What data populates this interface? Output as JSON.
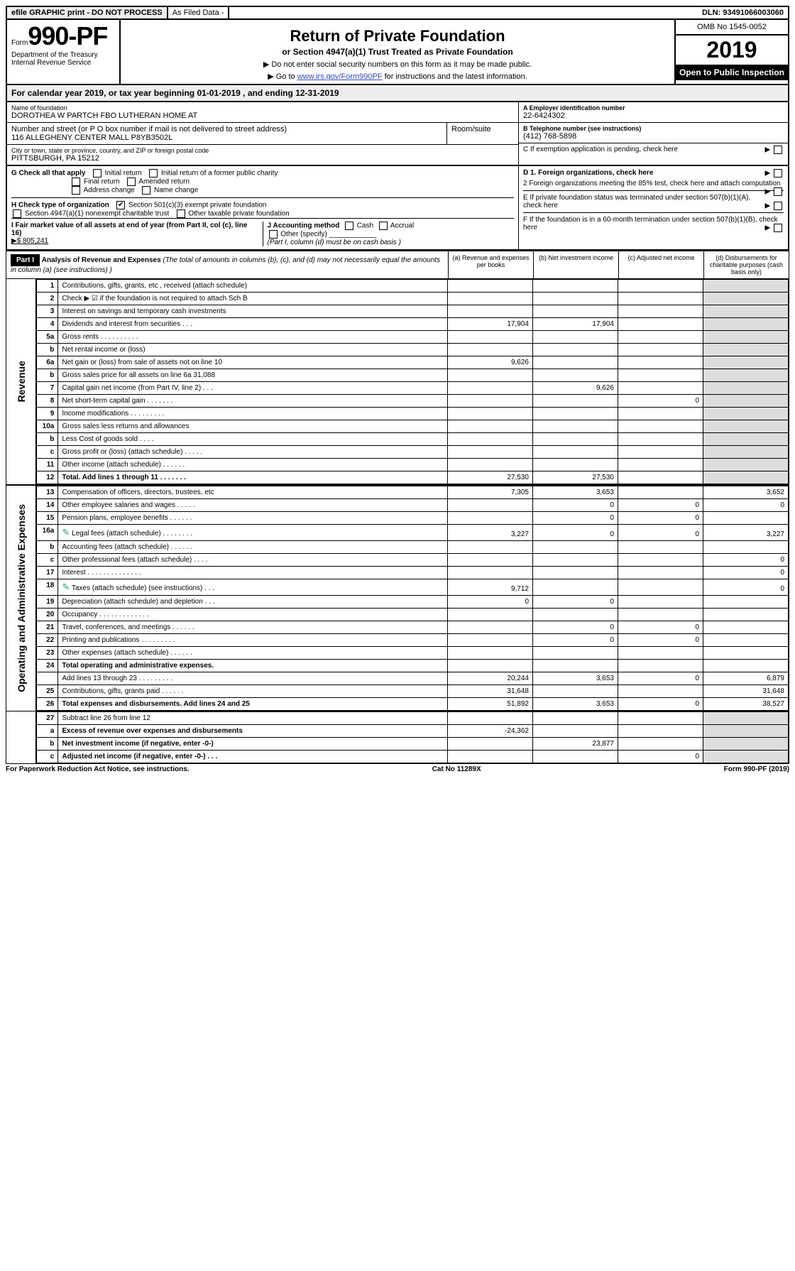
{
  "banner": {
    "efile": "efile GRAPHIC print - DO NOT PROCESS",
    "asfiled": "As Filed Data -",
    "dln": "DLN: 93491066003060"
  },
  "header": {
    "form_prefix": "Form",
    "form_no": "990-PF",
    "dept": "Department of the Treasury",
    "irs": "Internal Revenue Service",
    "title": "Return of Private Foundation",
    "subtitle": "or Section 4947(a)(1) Trust Treated as Private Foundation",
    "note1": "▶ Do not enter social security numbers on this form as it may be made public.",
    "note2_pre": "▶ Go to ",
    "note2_link": "www.irs.gov/Form990PF",
    "note2_post": " for instructions and the latest information.",
    "omb": "OMB No 1545-0052",
    "year": "2019",
    "inspection": "Open to Public Inspection"
  },
  "calendar": {
    "text_pre": "For calendar year 2019, or tax year beginning ",
    "begin": "01-01-2019",
    "mid": " , and ending ",
    "end": "12-31-2019"
  },
  "entity": {
    "name_label": "Name of foundation",
    "name": "DOROTHEA W PARTCH FBO LUTHERAN HOME AT",
    "addr_label": "Number and street (or P O  box number if mail is not delivered to street address)",
    "addr": "116 ALLEGHENY CENTER MALL P8YB3502L",
    "room_label": "Room/suite",
    "city_label": "City or town, state or province, country, and ZIP or foreign postal code",
    "city": "PITTSBURGH, PA  15212",
    "ein_label": "A Employer identification number",
    "ein": "22-6424302",
    "phone_label": "B Telephone number (see instructions)",
    "phone": "(412) 768-5898",
    "c_label": "C If exemption application is pending, check here"
  },
  "g": {
    "label": "G Check all that apply",
    "opts": [
      "Initial return",
      "Initial return of a former public charity",
      "Final return",
      "Amended return",
      "Address change",
      "Name change"
    ]
  },
  "h": {
    "label": "H Check type of organization",
    "opt1": "Section 501(c)(3) exempt private foundation",
    "opt2": "Section 4947(a)(1) nonexempt charitable trust",
    "opt3": "Other taxable private foundation"
  },
  "i": {
    "label": "I Fair market value of all assets at end of year (from Part II, col  (c), line 16)",
    "val": "▶$  805,241"
  },
  "j": {
    "label": "J Accounting method",
    "opts": [
      "Cash",
      "Accrual"
    ],
    "other": "Other (specify)",
    "note": "(Part I, column (d) must be on cash basis )"
  },
  "d": {
    "d1": "D 1. Foreign organizations, check here",
    "d2": "2 Foreign organizations meeting the 85% test, check here and attach computation",
    "e": "E  If private foundation status was terminated under section 507(b)(1)(A), check here",
    "f": "F  If the foundation is in a 60-month termination under section 507(b)(1)(B), check here"
  },
  "part1": {
    "label": "Part I",
    "title": "Analysis of Revenue and Expenses",
    "title_note": " (The total of amounts in columns (b), (c), and (d) may not necessarily equal the amounts in column (a) (see instructions) )",
    "cols": {
      "a": "(a) Revenue and expenses per books",
      "b": "(b) Net investment income",
      "c": "(c) Adjusted net income",
      "d": "(d) Disbursements for charitable purposes (cash basis only)"
    }
  },
  "sections": {
    "revenue": "Revenue",
    "expenses": "Operating and Administrative Expenses"
  },
  "rows_rev": [
    {
      "n": "1",
      "d": "Contributions, gifts, grants, etc , received (attach schedule)"
    },
    {
      "n": "2",
      "d": "Check ▶ ☑ if the foundation is not required to attach Sch B",
      "dots": true
    },
    {
      "n": "3",
      "d": "Interest on savings and temporary cash investments"
    },
    {
      "n": "4",
      "d": "Dividends and interest from securities  .  .  .",
      "a": "17,904",
      "b": "17,904"
    },
    {
      "n": "5a",
      "d": "Gross rents  .  .  .  .  .  .  .  .  .  ."
    },
    {
      "n": "b",
      "d": "Net rental income or (loss)  "
    },
    {
      "n": "6a",
      "d": "Net gain or (loss) from sale of assets not on line 10",
      "a": "9,626"
    },
    {
      "n": "b",
      "d": "Gross sales price for all assets on line 6a            31,088"
    },
    {
      "n": "7",
      "d": "Capital gain net income (from Part IV, line 2)  .  .  .",
      "b": "9,626"
    },
    {
      "n": "8",
      "d": "Net short-term capital gain  .  .  .  .  .  .  .",
      "c": "0"
    },
    {
      "n": "9",
      "d": "Income modifications  .  .  .  .  .  .  .  .  ."
    },
    {
      "n": "10a",
      "d": "Gross sales less returns and allowances"
    },
    {
      "n": "b",
      "d": "Less  Cost of goods sold  .  .  .  ."
    },
    {
      "n": "c",
      "d": "Gross profit or (loss) (attach schedule)  .  .  .  .  ."
    },
    {
      "n": "11",
      "d": "Other income (attach schedule)  .  .  .  .  .  ."
    },
    {
      "n": "12",
      "d": "Total. Add lines 1 through 11  .  .  .  .  .  .  .",
      "bold": true,
      "a": "27,530",
      "b": "27,530"
    }
  ],
  "rows_exp": [
    {
      "n": "13",
      "d": "Compensation of officers, directors, trustees, etc",
      "a": "7,305",
      "b": "3,653",
      "dd": "3,652"
    },
    {
      "n": "14",
      "d": "Other employee salaries and wages  .  .  .  .  .",
      "b": "0",
      "c": "0",
      "dd": "0"
    },
    {
      "n": "15",
      "d": "Pension plans, employee benefits  .  .  .  .  .  .",
      "b": "0",
      "c": "0"
    },
    {
      "n": "16a",
      "d": "Legal fees (attach schedule)  .  .  .  .  .  .  .  .",
      "attach": true,
      "a": "3,227",
      "b": "0",
      "c": "0",
      "dd": "3,227"
    },
    {
      "n": "b",
      "d": "Accounting fees (attach schedule)  .  .  .  .  .  ."
    },
    {
      "n": "c",
      "d": "Other professional fees (attach schedule)  .  .  .  .",
      "dd": "0"
    },
    {
      "n": "17",
      "d": "Interest  .  .  .  .  .  .  .  .  .  .  .  .  .  .",
      "dd": "0"
    },
    {
      "n": "18",
      "d": "Taxes (attach schedule) (see instructions)  .  .  .",
      "attach": true,
      "a": "9,712",
      "dd": "0"
    },
    {
      "n": "19",
      "d": "Depreciation (attach schedule) and depletion  .  .  .",
      "a": "0",
      "b": "0"
    },
    {
      "n": "20",
      "d": "Occupancy  .  .  .  .  .  .  .  .  .  .  .  .  ."
    },
    {
      "n": "21",
      "d": "Travel, conferences, and meetings  .  .  .  .  .  .",
      "b": "0",
      "c": "0"
    },
    {
      "n": "22",
      "d": "Printing and publications  .  .  .  .  .  .  .  .  .",
      "b": "0",
      "c": "0"
    },
    {
      "n": "23",
      "d": "Other expenses (attach schedule)  .  .  .  .  .  ."
    },
    {
      "n": "24",
      "d": "Total operating and administrative expenses.",
      "bold": true
    },
    {
      "n": "",
      "d": "Add lines 13 through 23  .  .  .  .  .  .  .  .  .",
      "a": "20,244",
      "b": "3,653",
      "c": "0",
      "dd": "6,879"
    },
    {
      "n": "25",
      "d": "Contributions, gifts, grants paid  .  .  .  .  .  .",
      "a": "31,648",
      "dd": "31,648"
    },
    {
      "n": "26",
      "d": "Total expenses and disbursements. Add lines 24 and 25",
      "bold": true,
      "a": "51,892",
      "b": "3,653",
      "c": "0",
      "dd": "38,527"
    }
  ],
  "rows_net": [
    {
      "n": "27",
      "d": "Subtract line 26 from line 12"
    },
    {
      "n": "a",
      "d": "Excess of revenue over expenses and disbursements",
      "bold": true,
      "a": "-24,362"
    },
    {
      "n": "b",
      "d": "Net investment income (if negative, enter -0-)",
      "bold": true,
      "b": "23,877"
    },
    {
      "n": "c",
      "d": "Adjusted net income (if negative, enter -0-)  .  .  .",
      "bold": true,
      "c": "0"
    }
  ],
  "footer": {
    "left": "For Paperwork Reduction Act Notice, see instructions.",
    "mid": "Cat  No  11289X",
    "right": "Form 990-PF (2019)"
  }
}
